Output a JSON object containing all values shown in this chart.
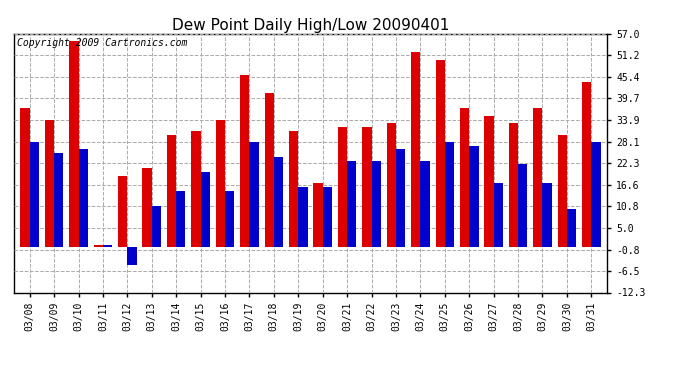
{
  "title": "Dew Point Daily High/Low 20090401",
  "copyright": "Copyright 2009 Cartronics.com",
  "dates": [
    "03/08",
    "03/09",
    "03/10",
    "03/11",
    "03/12",
    "03/13",
    "03/14",
    "03/15",
    "03/16",
    "03/17",
    "03/18",
    "03/19",
    "03/20",
    "03/21",
    "03/22",
    "03/23",
    "03/24",
    "03/25",
    "03/26",
    "03/27",
    "03/28",
    "03/29",
    "03/30",
    "03/31"
  ],
  "highs": [
    37.0,
    34.0,
    55.0,
    0.5,
    19.0,
    21.0,
    30.0,
    31.0,
    34.0,
    46.0,
    41.0,
    31.0,
    17.0,
    32.0,
    32.0,
    33.0,
    52.0,
    50.0,
    37.0,
    35.0,
    33.0,
    37.0,
    30.0,
    44.0
  ],
  "lows": [
    28.0,
    25.0,
    26.0,
    0.5,
    -5.0,
    11.0,
    15.0,
    20.0,
    15.0,
    28.0,
    24.0,
    16.0,
    16.0,
    23.0,
    23.0,
    26.0,
    23.0,
    28.0,
    27.0,
    17.0,
    22.0,
    17.0,
    10.0,
    28.0
  ],
  "high_color": "#dd0000",
  "low_color": "#0000cc",
  "bg_color": "#ffffff",
  "grid_color": "#aaaaaa",
  "ylim_min": -12.3,
  "ylim_max": 57.0,
  "ytick_values": [
    -12.3,
    -6.5,
    -0.8,
    5.0,
    10.8,
    16.6,
    22.3,
    28.1,
    33.9,
    39.7,
    45.4,
    51.2,
    57.0
  ],
  "title_fontsize": 11,
  "copyright_fontsize": 7,
  "tick_fontsize": 7
}
